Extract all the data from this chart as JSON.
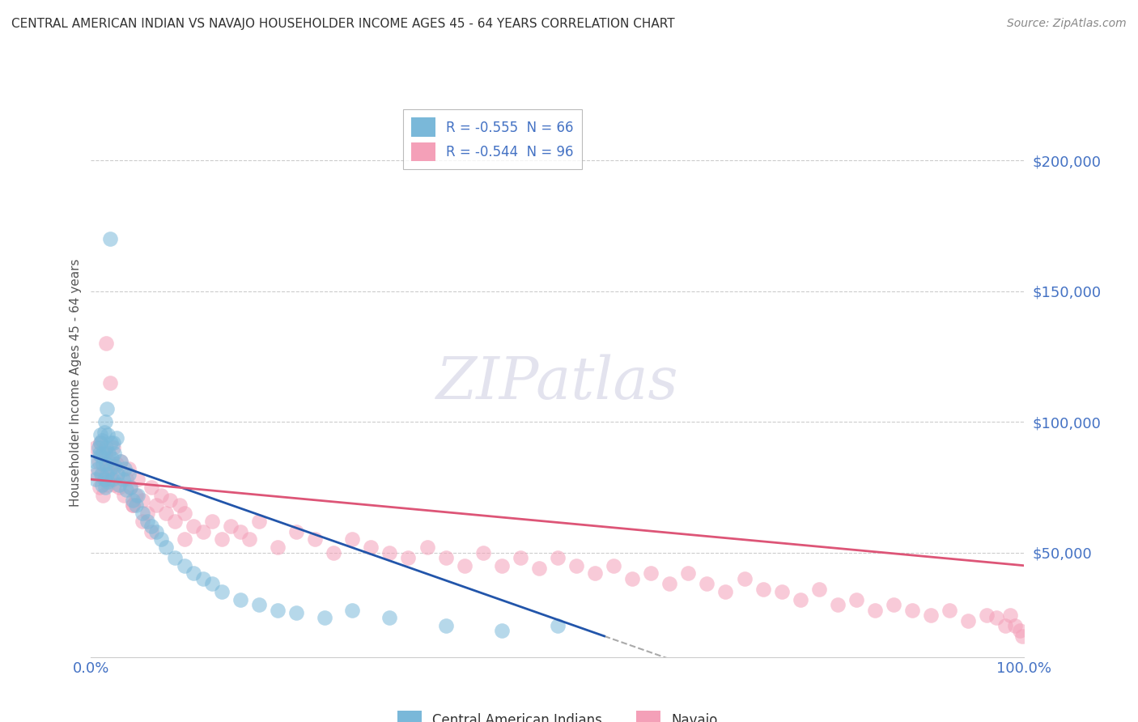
{
  "title": "CENTRAL AMERICAN INDIAN VS NAVAJO HOUSEHOLDER INCOME AGES 45 - 64 YEARS CORRELATION CHART",
  "source": "Source: ZipAtlas.com",
  "ylabel": "Householder Income Ages 45 - 64 years",
  "legend_label1": "Central American Indians",
  "legend_label2": "Navajo",
  "R1": -0.555,
  "N1": 66,
  "R2": -0.544,
  "N2": 96,
  "color1": "#7ab8d9",
  "color2": "#f4a0b8",
  "line1_color": "#2255aa",
  "line2_color": "#dd5577",
  "axis_label_color": "#4472c4",
  "ytick_labels": [
    "$50,000",
    "$100,000",
    "$150,000",
    "$200,000"
  ],
  "ytick_values": [
    50000,
    100000,
    150000,
    200000
  ],
  "ylim": [
    10000,
    220000
  ],
  "xlim": [
    0.0,
    1.0
  ],
  "blue_points_x": [
    0.005,
    0.005,
    0.007,
    0.008,
    0.009,
    0.01,
    0.01,
    0.01,
    0.011,
    0.012,
    0.012,
    0.013,
    0.013,
    0.014,
    0.014,
    0.015,
    0.015,
    0.016,
    0.016,
    0.017,
    0.017,
    0.018,
    0.018,
    0.019,
    0.02,
    0.02,
    0.021,
    0.022,
    0.023,
    0.024,
    0.025,
    0.026,
    0.027,
    0.028,
    0.03,
    0.032,
    0.034,
    0.036,
    0.038,
    0.04,
    0.042,
    0.045,
    0.048,
    0.05,
    0.055,
    0.06,
    0.065,
    0.07,
    0.075,
    0.08,
    0.09,
    0.1,
    0.11,
    0.12,
    0.13,
    0.14,
    0.16,
    0.18,
    0.2,
    0.22,
    0.25,
    0.28,
    0.32,
    0.38,
    0.44,
    0.5
  ],
  "blue_points_y": [
    78000,
    85000,
    82000,
    90000,
    88000,
    95000,
    92000,
    87000,
    80000,
    76000,
    93000,
    88000,
    84000,
    78000,
    96000,
    100000,
    75000,
    90000,
    84000,
    105000,
    80000,
    95000,
    77000,
    88000,
    170000,
    82000,
    92000,
    86000,
    78000,
    92000,
    88000,
    83000,
    94000,
    80000,
    76000,
    85000,
    78000,
    82000,
    74000,
    80000,
    75000,
    70000,
    68000,
    72000,
    65000,
    62000,
    60000,
    58000,
    55000,
    52000,
    48000,
    45000,
    42000,
    40000,
    38000,
    35000,
    32000,
    30000,
    28000,
    27000,
    25000,
    28000,
    25000,
    22000,
    20000,
    22000
  ],
  "pink_points_x": [
    0.005,
    0.006,
    0.008,
    0.009,
    0.01,
    0.012,
    0.013,
    0.015,
    0.015,
    0.016,
    0.017,
    0.018,
    0.019,
    0.02,
    0.021,
    0.022,
    0.024,
    0.025,
    0.027,
    0.028,
    0.03,
    0.032,
    0.035,
    0.038,
    0.04,
    0.042,
    0.045,
    0.048,
    0.05,
    0.055,
    0.06,
    0.065,
    0.07,
    0.075,
    0.08,
    0.085,
    0.09,
    0.095,
    0.1,
    0.11,
    0.12,
    0.13,
    0.14,
    0.15,
    0.16,
    0.17,
    0.18,
    0.2,
    0.22,
    0.24,
    0.26,
    0.28,
    0.3,
    0.32,
    0.34,
    0.36,
    0.38,
    0.4,
    0.42,
    0.44,
    0.46,
    0.48,
    0.5,
    0.52,
    0.54,
    0.56,
    0.58,
    0.6,
    0.62,
    0.64,
    0.66,
    0.68,
    0.7,
    0.72,
    0.74,
    0.76,
    0.78,
    0.8,
    0.82,
    0.84,
    0.86,
    0.88,
    0.9,
    0.92,
    0.94,
    0.96,
    0.97,
    0.98,
    0.985,
    0.99,
    0.995,
    0.998,
    0.045,
    0.055,
    0.065,
    0.1
  ],
  "pink_points_y": [
    90000,
    80000,
    85000,
    75000,
    92000,
    80000,
    72000,
    88000,
    78000,
    130000,
    82000,
    76000,
    85000,
    115000,
    78000,
    82000,
    90000,
    76000,
    84000,
    80000,
    75000,
    85000,
    72000,
    78000,
    82000,
    75000,
    68000,
    72000,
    78000,
    70000,
    65000,
    75000,
    68000,
    72000,
    65000,
    70000,
    62000,
    68000,
    65000,
    60000,
    58000,
    62000,
    55000,
    60000,
    58000,
    55000,
    62000,
    52000,
    58000,
    55000,
    50000,
    55000,
    52000,
    50000,
    48000,
    52000,
    48000,
    45000,
    50000,
    45000,
    48000,
    44000,
    48000,
    45000,
    42000,
    45000,
    40000,
    42000,
    38000,
    42000,
    38000,
    35000,
    40000,
    36000,
    35000,
    32000,
    36000,
    30000,
    32000,
    28000,
    30000,
    28000,
    26000,
    28000,
    24000,
    26000,
    25000,
    22000,
    26000,
    22000,
    20000,
    18000,
    68000,
    62000,
    58000,
    55000
  ],
  "blue_line_x0": 0.0,
  "blue_line_x1": 0.55,
  "blue_line_xext": 0.75,
  "pink_line_x0": 0.0,
  "pink_line_x1": 1.0
}
